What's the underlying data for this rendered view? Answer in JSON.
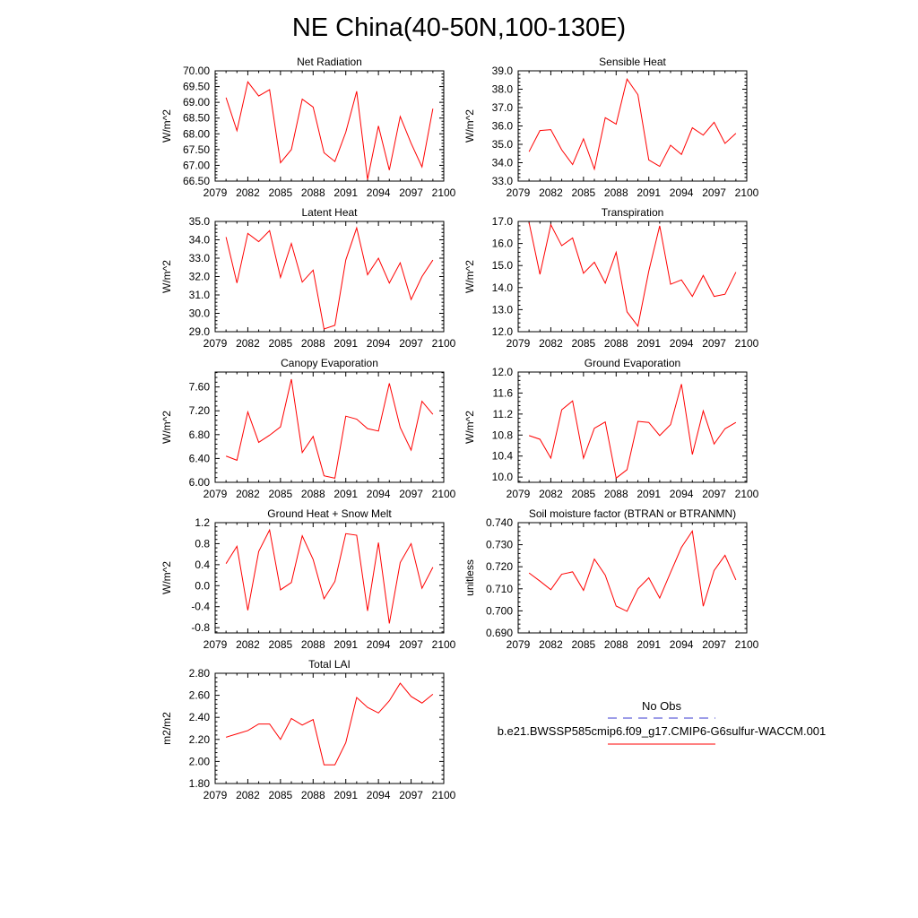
{
  "figure": {
    "title": "NE China(40-50N,100-130E)"
  },
  "chart_data": [
    {
      "type": "line",
      "title": "Net Radiation",
      "ylabel": "W/m^2",
      "xlim": [
        2079,
        2100
      ],
      "ylim": [
        66.5,
        70.0
      ],
      "xticks": [
        2079,
        2082,
        2085,
        2088,
        2091,
        2094,
        2097,
        2100
      ],
      "yticks": [
        66.5,
        67.0,
        67.5,
        68.0,
        68.5,
        69.0,
        69.5,
        70.0
      ],
      "ytick_labels": [
        "66.50",
        "67.00",
        "67.50",
        "68.00",
        "68.50",
        "69.00",
        "69.50",
        "70.00"
      ],
      "series": [
        {
          "color": "#ff0000",
          "x": [
            2080,
            2081,
            2082,
            2083,
            2084,
            2085,
            2086,
            2087,
            2088,
            2089,
            2090,
            2091,
            2092,
            2093,
            2094,
            2095,
            2096,
            2097,
            2098,
            2099
          ],
          "y": [
            69.15,
            68.1,
            69.65,
            69.2,
            69.4,
            67.08,
            67.5,
            69.1,
            68.85,
            67.4,
            67.12,
            68.05,
            69.35,
            66.55,
            68.25,
            66.85,
            68.55,
            67.7,
            66.95,
            68.8
          ]
        }
      ]
    },
    {
      "type": "line",
      "title": "Sensible Heat",
      "ylabel": "W/m^2",
      "xlim": [
        2079,
        2100
      ],
      "ylim": [
        33.0,
        39.0
      ],
      "xticks": [
        2079,
        2082,
        2085,
        2088,
        2091,
        2094,
        2097,
        2100
      ],
      "yticks": [
        33,
        34,
        35,
        36,
        37,
        38,
        39
      ],
      "ytick_labels": [
        "33.0",
        "34.0",
        "35.0",
        "36.0",
        "37.0",
        "38.0",
        "39.0"
      ],
      "series": [
        {
          "color": "#ff0000",
          "x": [
            2080,
            2081,
            2082,
            2083,
            2084,
            2085,
            2086,
            2087,
            2088,
            2089,
            2090,
            2091,
            2092,
            2093,
            2094,
            2095,
            2096,
            2097,
            2098,
            2099
          ],
          "y": [
            34.6,
            35.75,
            35.8,
            34.7,
            33.9,
            35.3,
            33.65,
            36.45,
            36.1,
            38.55,
            37.7,
            34.15,
            33.8,
            34.95,
            34.45,
            35.9,
            35.5,
            36.2,
            35.05,
            35.6
          ]
        }
      ]
    },
    {
      "type": "line",
      "title": "Latent Heat",
      "ylabel": "W/m^2",
      "xlim": [
        2079,
        2100
      ],
      "ylim": [
        29.0,
        35.0
      ],
      "xticks": [
        2079,
        2082,
        2085,
        2088,
        2091,
        2094,
        2097,
        2100
      ],
      "yticks": [
        29,
        30,
        31,
        32,
        33,
        34,
        35
      ],
      "ytick_labels": [
        "29.0",
        "30.0",
        "31.0",
        "32.0",
        "33.0",
        "34.0",
        "35.0"
      ],
      "series": [
        {
          "color": "#ff0000",
          "x": [
            2080,
            2081,
            2082,
            2083,
            2084,
            2085,
            2086,
            2087,
            2088,
            2089,
            2090,
            2091,
            2092,
            2093,
            2094,
            2095,
            2096,
            2097,
            2098,
            2099
          ],
          "y": [
            34.15,
            31.65,
            34.35,
            33.9,
            34.5,
            31.95,
            33.8,
            31.7,
            32.35,
            29.15,
            29.35,
            32.9,
            34.65,
            32.1,
            33.0,
            31.65,
            32.75,
            30.75,
            32.0,
            32.9
          ]
        }
      ]
    },
    {
      "type": "line",
      "title": "Transpiration",
      "ylabel": "W/m^2",
      "xlim": [
        2079,
        2100
      ],
      "ylim": [
        12.0,
        17.0
      ],
      "xticks": [
        2079,
        2082,
        2085,
        2088,
        2091,
        2094,
        2097,
        2100
      ],
      "yticks": [
        12,
        13,
        14,
        15,
        16,
        17
      ],
      "ytick_labels": [
        "12.0",
        "13.0",
        "14.0",
        "15.0",
        "16.0",
        "17.0"
      ],
      "series": [
        {
          "color": "#ff0000",
          "x": [
            2080,
            2081,
            2082,
            2083,
            2084,
            2085,
            2086,
            2087,
            2088,
            2089,
            2090,
            2091,
            2092,
            2093,
            2094,
            2095,
            2096,
            2097,
            2098,
            2099
          ],
          "y": [
            16.95,
            14.6,
            16.85,
            15.9,
            16.25,
            14.65,
            15.15,
            14.2,
            15.6,
            12.9,
            12.25,
            14.75,
            16.8,
            14.15,
            14.35,
            13.6,
            14.55,
            13.6,
            13.7,
            14.7
          ]
        }
      ]
    },
    {
      "type": "line",
      "title": "Canopy Evaporation",
      "ylabel": "W/m^2",
      "xlim": [
        2079,
        2100
      ],
      "ylim": [
        6.0,
        7.85
      ],
      "xticks": [
        2079,
        2082,
        2085,
        2088,
        2091,
        2094,
        2097,
        2100
      ],
      "yticks": [
        6.0,
        6.4,
        6.8,
        7.2,
        7.6
      ],
      "ytick_labels": [
        "6.00",
        "6.40",
        "6.80",
        "7.20",
        "7.60"
      ],
      "series": [
        {
          "color": "#ff0000",
          "x": [
            2080,
            2081,
            2082,
            2083,
            2084,
            2085,
            2086,
            2087,
            2088,
            2089,
            2090,
            2091,
            2092,
            2093,
            2094,
            2095,
            2096,
            2097,
            2098,
            2099
          ],
          "y": [
            6.44,
            6.37,
            7.18,
            6.67,
            6.79,
            6.93,
            7.73,
            6.5,
            6.77,
            6.11,
            6.07,
            7.11,
            7.06,
            6.9,
            6.86,
            7.66,
            6.92,
            6.54,
            7.36,
            7.14
          ]
        }
      ]
    },
    {
      "type": "line",
      "title": "Ground Evaporation",
      "ylabel": "W/m^2",
      "xlim": [
        2079,
        2100
      ],
      "ylim": [
        9.9,
        12.0
      ],
      "xticks": [
        2079,
        2082,
        2085,
        2088,
        2091,
        2094,
        2097,
        2100
      ],
      "yticks": [
        10.0,
        10.4,
        10.8,
        11.2,
        11.6,
        12.0
      ],
      "ytick_labels": [
        "10.0",
        "10.4",
        "10.8",
        "11.2",
        "11.6",
        "12.0"
      ],
      "series": [
        {
          "color": "#ff0000",
          "x": [
            2080,
            2081,
            2082,
            2083,
            2084,
            2085,
            2086,
            2087,
            2088,
            2089,
            2090,
            2091,
            2092,
            2093,
            2094,
            2095,
            2096,
            2097,
            2098,
            2099
          ],
          "y": [
            10.79,
            10.72,
            10.36,
            11.28,
            11.45,
            10.36,
            10.93,
            11.05,
            9.98,
            10.14,
            11.06,
            11.04,
            10.79,
            11.0,
            11.77,
            10.43,
            11.26,
            10.63,
            10.92,
            11.04
          ]
        }
      ]
    },
    {
      "type": "line",
      "title": "Ground Heat + Snow Melt",
      "ylabel": "W/m^2",
      "xlim": [
        2079,
        2100
      ],
      "ylim": [
        -0.9,
        1.2
      ],
      "xticks": [
        2079,
        2082,
        2085,
        2088,
        2091,
        2094,
        2097,
        2100
      ],
      "yticks": [
        -0.8,
        -0.4,
        0.0,
        0.4,
        0.8,
        1.2
      ],
      "ytick_labels": [
        "-0.8",
        "-0.4",
        "0.0",
        "0.4",
        "0.8",
        "1.2"
      ],
      "series": [
        {
          "color": "#ff0000",
          "x": [
            2080,
            2081,
            2082,
            2083,
            2084,
            2085,
            2086,
            2087,
            2088,
            2089,
            2090,
            2091,
            2092,
            2093,
            2094,
            2095,
            2096,
            2097,
            2098,
            2099
          ],
          "y": [
            0.42,
            0.75,
            -0.47,
            0.65,
            1.06,
            -0.08,
            0.06,
            0.95,
            0.5,
            -0.25,
            0.08,
            0.99,
            0.96,
            -0.48,
            0.82,
            -0.72,
            0.44,
            0.8,
            -0.05,
            0.35
          ]
        }
      ]
    },
    {
      "type": "line",
      "title": "Soil moisture factor (BTRAN or BTRANMN)",
      "ylabel": "unitless",
      "xlim": [
        2079,
        2100
      ],
      "ylim": [
        0.69,
        0.74
      ],
      "xticks": [
        2079,
        2082,
        2085,
        2088,
        2091,
        2094,
        2097,
        2100
      ],
      "yticks": [
        0.69,
        0.7,
        0.71,
        0.72,
        0.73,
        0.74
      ],
      "ytick_labels": [
        "0.690",
        "0.700",
        "0.710",
        "0.720",
        "0.730",
        "0.740"
      ],
      "series": [
        {
          "color": "#ff0000",
          "x": [
            2080,
            2081,
            2082,
            2083,
            2084,
            2085,
            2086,
            2087,
            2088,
            2089,
            2090,
            2091,
            2092,
            2093,
            2094,
            2095,
            2096,
            2097,
            2098,
            2099
          ],
          "y": [
            0.7172,
            0.7135,
            0.7096,
            0.7166,
            0.7177,
            0.7093,
            0.7235,
            0.7162,
            0.7022,
            0.6998,
            0.71,
            0.715,
            0.7058,
            0.7174,
            0.7288,
            0.7362,
            0.7021,
            0.7183,
            0.7252,
            0.714
          ]
        }
      ]
    },
    {
      "type": "line",
      "title": "Total LAI",
      "ylabel": "m2/m2",
      "xlim": [
        2079,
        2100
      ],
      "ylim": [
        1.8,
        2.8
      ],
      "xticks": [
        2079,
        2082,
        2085,
        2088,
        2091,
        2094,
        2097,
        2100
      ],
      "yticks": [
        1.8,
        2.0,
        2.2,
        2.4,
        2.6,
        2.8
      ],
      "ytick_labels": [
        "1.80",
        "2.00",
        "2.20",
        "2.40",
        "2.60",
        "2.80"
      ],
      "series": [
        {
          "color": "#ff0000",
          "x": [
            2080,
            2081,
            2082,
            2083,
            2084,
            2085,
            2086,
            2087,
            2088,
            2089,
            2090,
            2091,
            2092,
            2093,
            2094,
            2095,
            2096,
            2097,
            2098,
            2099
          ],
          "y": [
            2.22,
            2.25,
            2.28,
            2.34,
            2.34,
            2.2,
            2.39,
            2.33,
            2.38,
            1.97,
            1.97,
            2.17,
            2.58,
            2.49,
            2.44,
            2.55,
            2.71,
            2.59,
            2.53,
            2.61
          ]
        }
      ]
    }
  ],
  "legend": {
    "items": [
      {
        "label": "No Obs",
        "color": "#3a3ad0",
        "style": "dashed"
      },
      {
        "label": "b.e21.BWSSP585cmip6.f09_g17.CMIP6-G6sulfur-WACCM.001",
        "color": "#ff0000",
        "style": "solid"
      }
    ]
  }
}
